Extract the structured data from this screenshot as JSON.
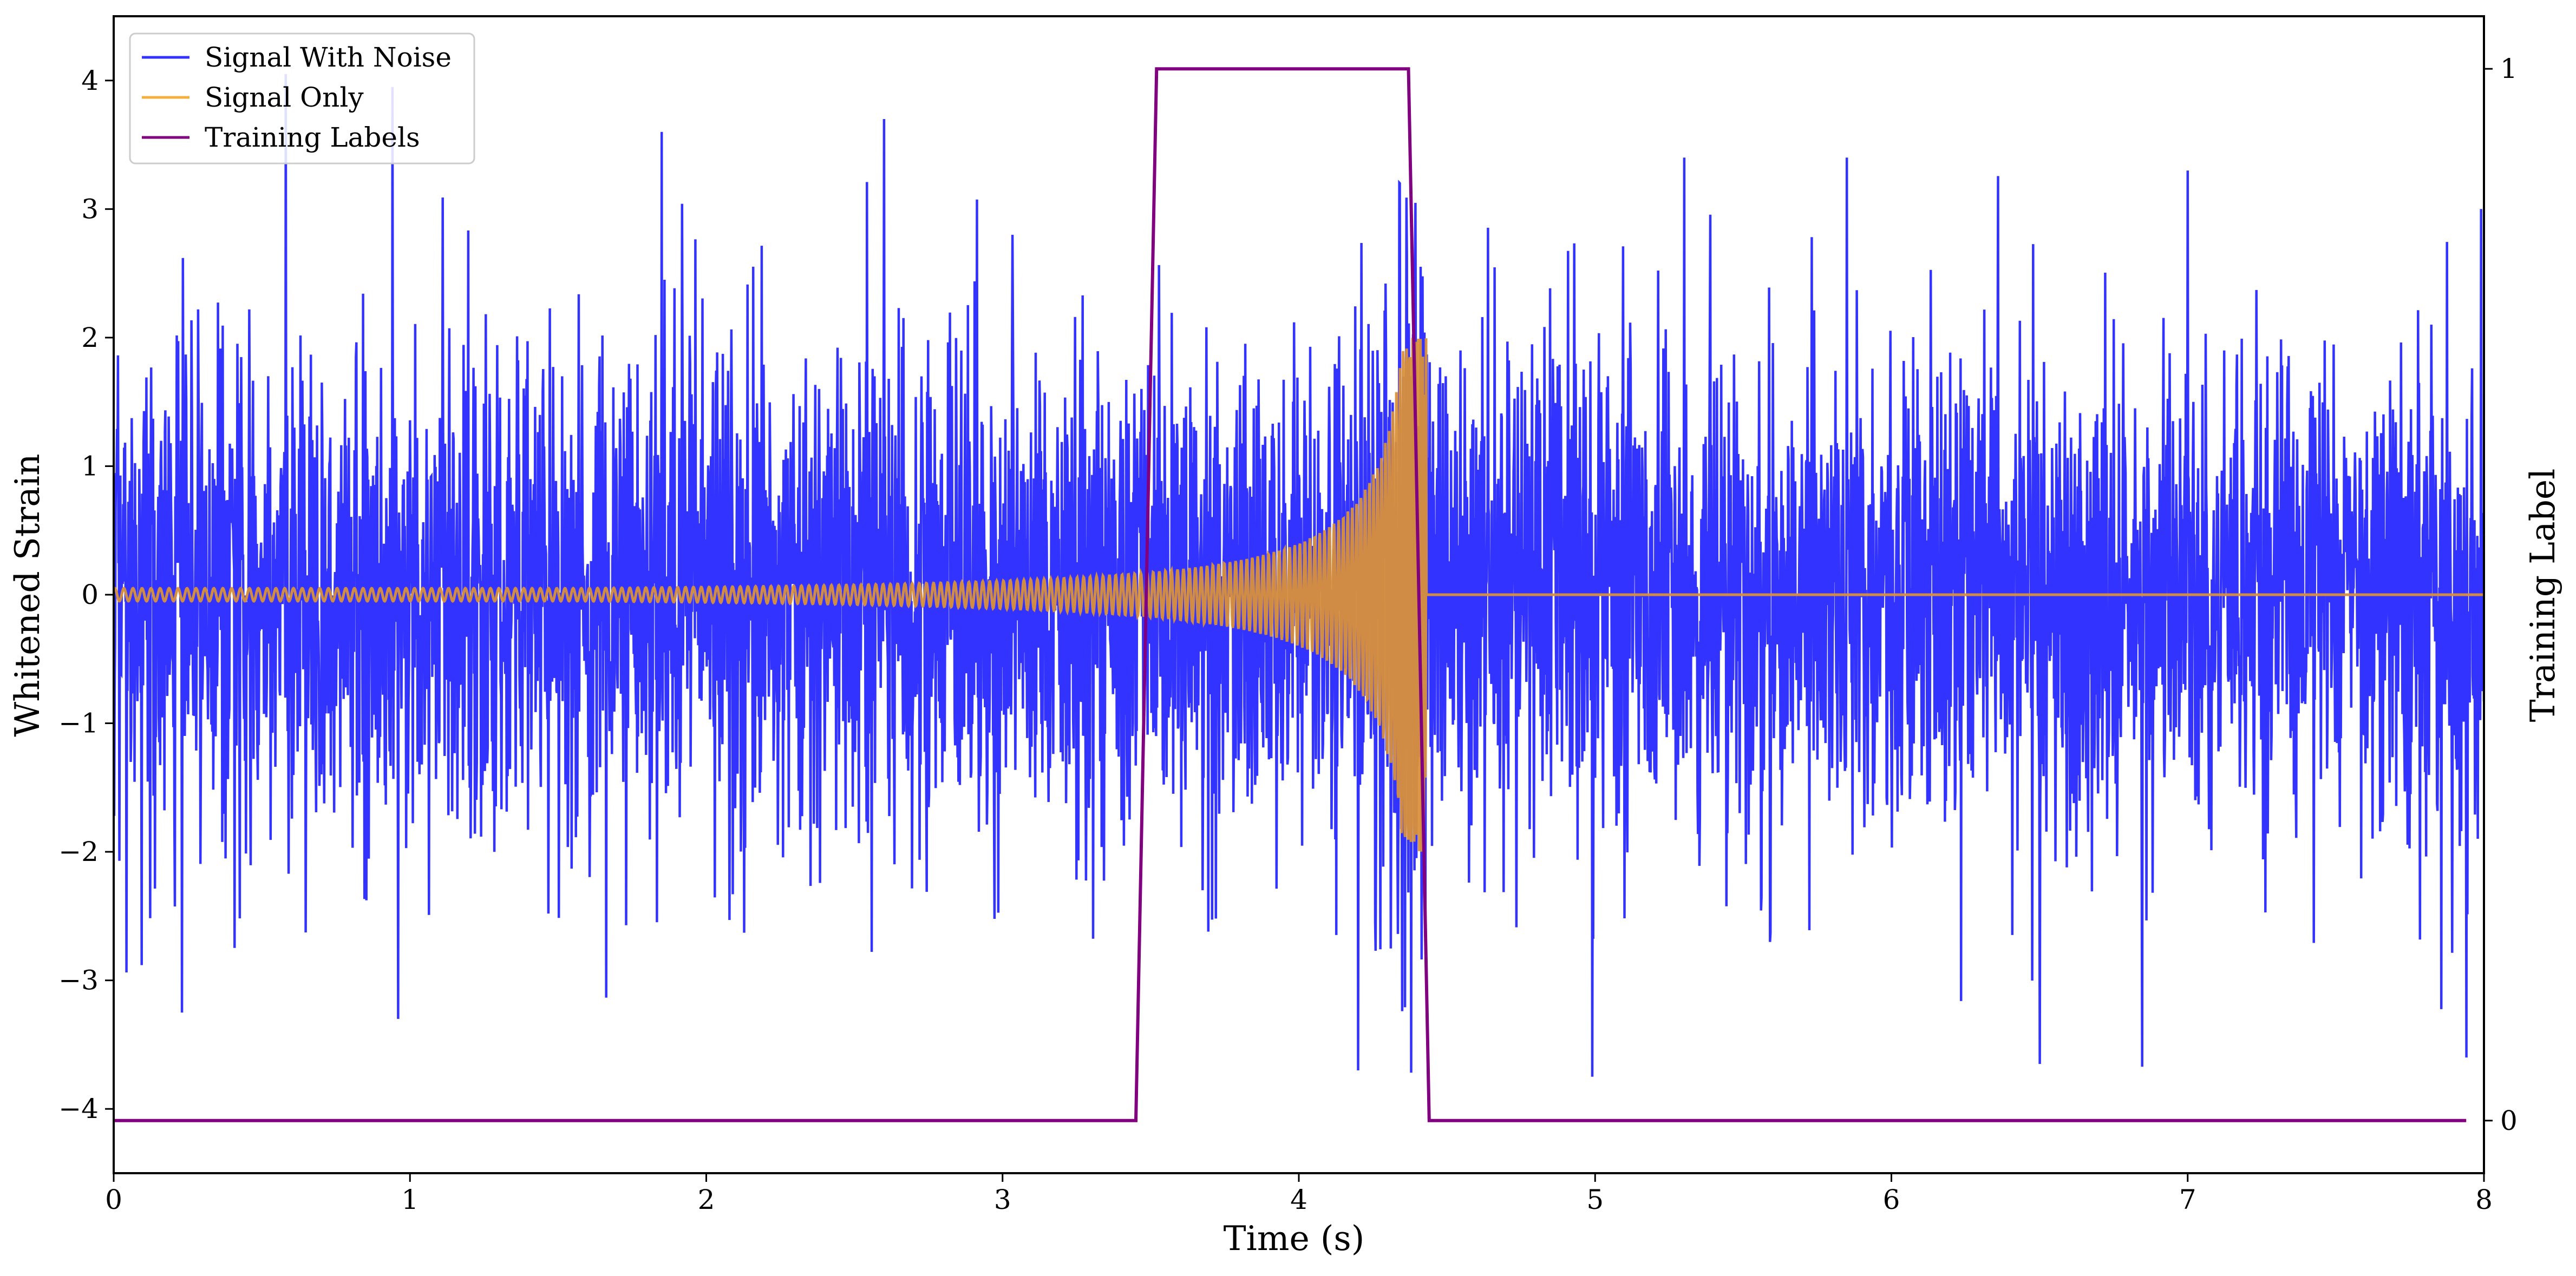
{
  "chart_data": {
    "type": "line",
    "title": "",
    "xlabel": "Time (s)",
    "ylabel": "Whitened Strain",
    "y2label": "Training Label",
    "xlim": [
      0,
      8
    ],
    "ylim": [
      -4.5,
      4.5
    ],
    "y2lim": [
      -0.05,
      1.05
    ],
    "x_ticks": [
      0,
      1,
      2,
      3,
      4,
      5,
      6,
      7,
      8
    ],
    "y_ticks": [
      -4,
      -3,
      -2,
      -1,
      0,
      1,
      2,
      3,
      4
    ],
    "y_tick_labels": [
      "−4",
      "−3",
      "−2",
      "−1",
      "0",
      "1",
      "2",
      "3",
      "4"
    ],
    "y2_ticks": [
      0,
      1
    ],
    "y2_tick_labels": [
      "0",
      "1"
    ],
    "grid": false,
    "legend_position": "upper-left",
    "legend": [
      {
        "label": "Signal With Noise",
        "color": "#3333ff"
      },
      {
        "label": "Signal Only",
        "color": "#f4b03e"
      },
      {
        "label": "Training Labels",
        "color": "#800080"
      }
    ],
    "series": [
      {
        "name": "Signal With Noise",
        "color": "#3333ff",
        "axis": "left",
        "description_values": {
          "noise_std": 0.95,
          "approx_peaks": [
            {
              "x": 0.58,
              "y": 4.05
            },
            {
              "x": 0.94,
              "y": 3.95
            },
            {
              "x": 1.85,
              "y": 3.6
            },
            {
              "x": 2.6,
              "y": 3.7
            },
            {
              "x": 4.34,
              "y": 3.2
            },
            {
              "x": 5.3,
              "y": 3.4
            },
            {
              "x": 5.85,
              "y": 3.4
            },
            {
              "x": 7.0,
              "y": 3.3
            },
            {
              "x": 7.99,
              "y": 3.0
            }
          ],
          "approx_troughs": [
            {
              "x": 0.23,
              "y": -3.25
            },
            {
              "x": 0.96,
              "y": -3.3
            },
            {
              "x": 4.2,
              "y": -3.7
            },
            {
              "x": 4.99,
              "y": -3.75
            },
            {
              "x": 6.5,
              "y": -3.65
            },
            {
              "x": 7.94,
              "y": -3.6
            }
          ]
        }
      },
      {
        "name": "Signal Only",
        "color": "#f4b03e",
        "axis": "left",
        "description_values": {
          "shape": "chirp",
          "start_amplitude": 0.05,
          "peak_amplitude": 2.0,
          "merger_time": 4.43,
          "post_merger_value": 0.0
        }
      },
      {
        "name": "Training Labels",
        "color": "#800080",
        "axis": "right",
        "x": [
          0.0,
          3.45,
          3.52,
          4.37,
          4.44,
          7.94
        ],
        "values": [
          0,
          0,
          1,
          1,
          0,
          0
        ]
      }
    ]
  }
}
